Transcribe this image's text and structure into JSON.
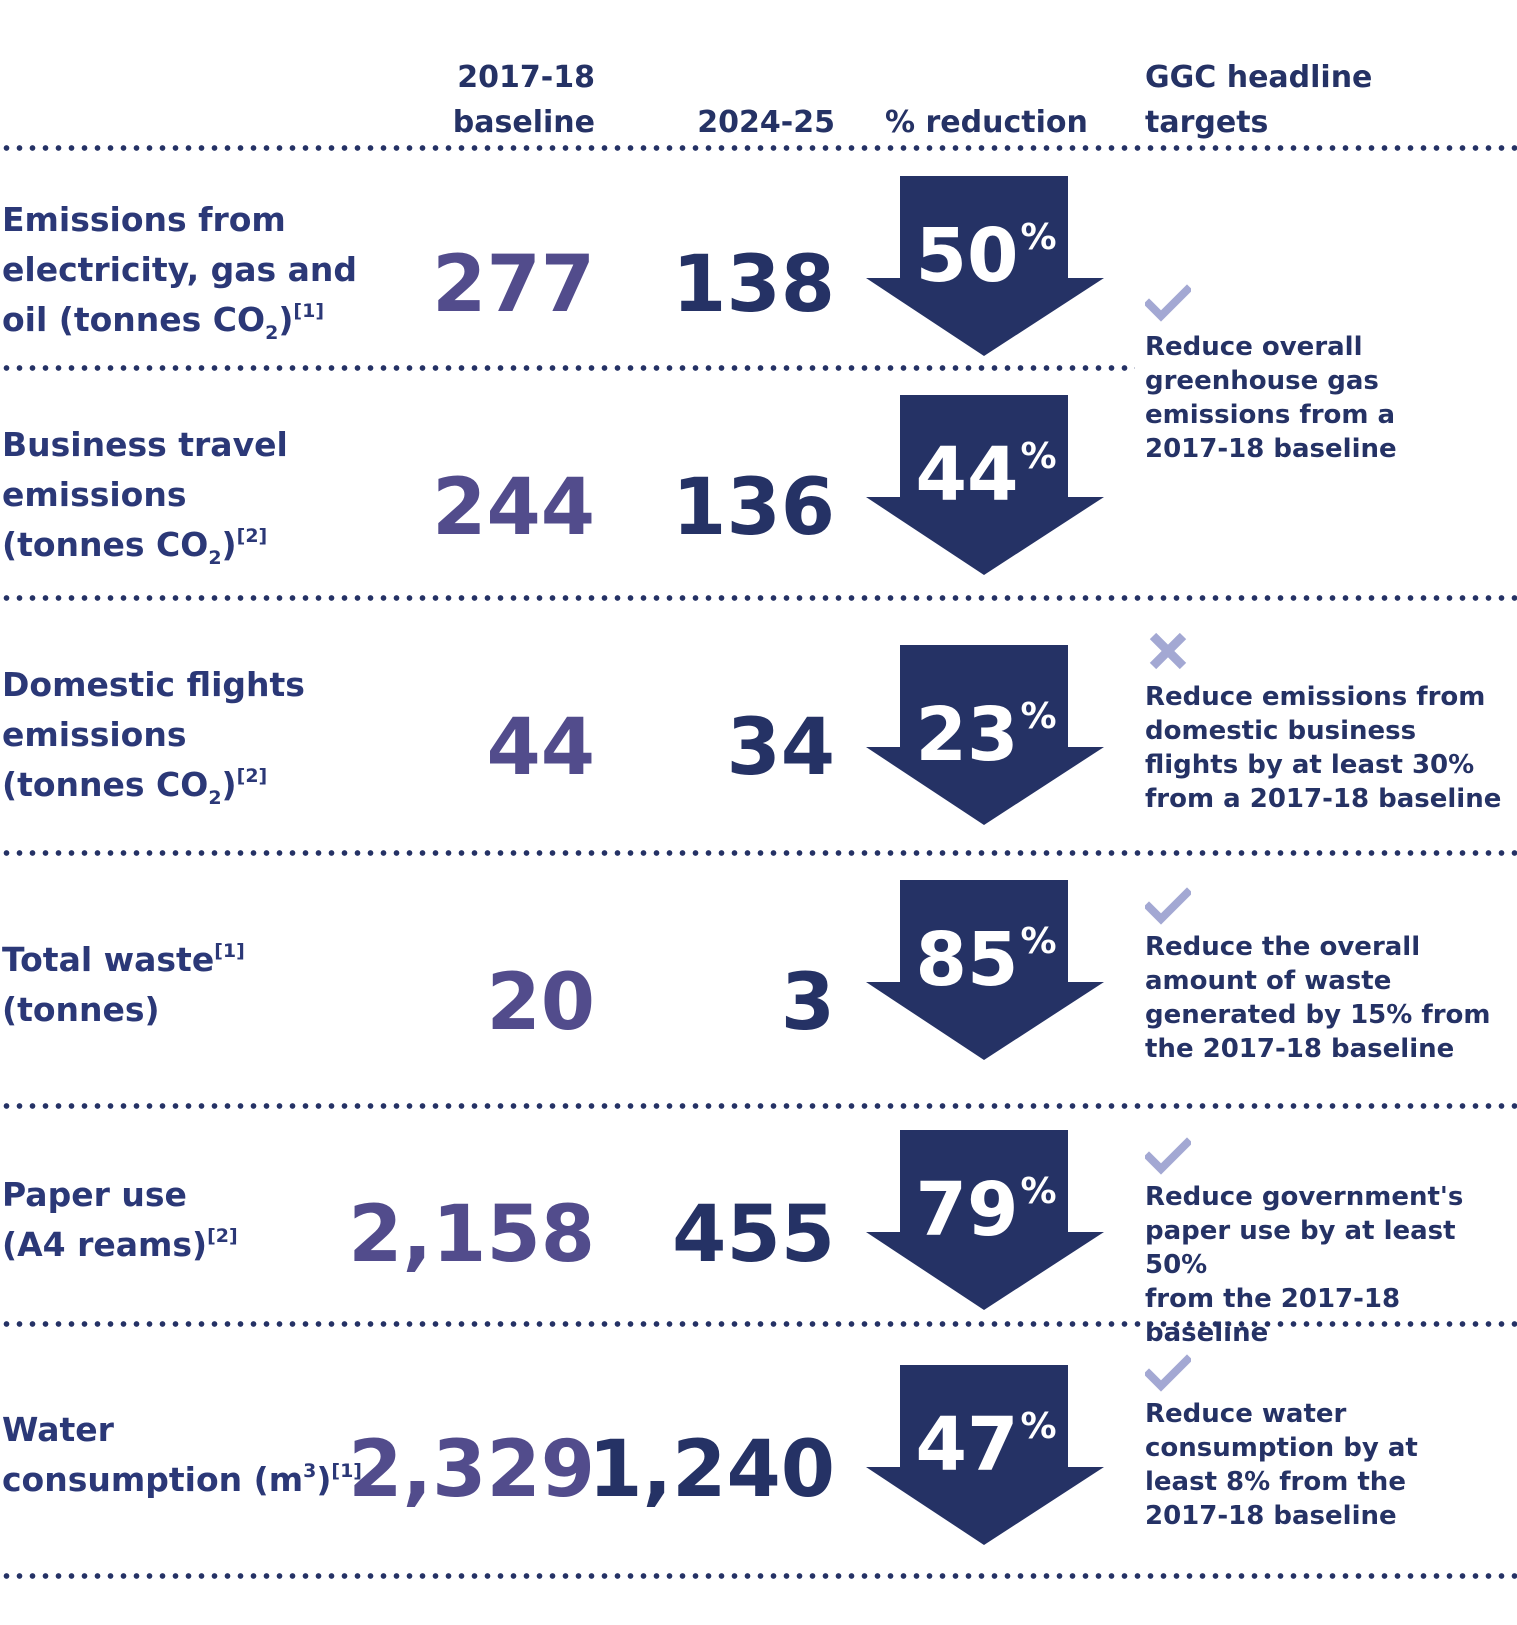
{
  "headers": {
    "baseline": [
      "2017-18",
      "baseline"
    ],
    "current": "2024-25",
    "reduction": "% reduction",
    "targets": [
      "GGC headline",
      "targets"
    ]
  },
  "rows": [
    {
      "label_lines": [
        "Emissions from",
        "electricity, gas and",
        "oil (tonnes CO"
      ],
      "label_sub": "2",
      "label_tail": ")",
      "footnote": "[1]",
      "baseline": "277",
      "current": "138",
      "reduction": "50",
      "pct_sign": "%"
    },
    {
      "label_lines": [
        "Business travel",
        "emissions",
        "(tonnes CO"
      ],
      "label_sub": "2",
      "label_tail": ")",
      "footnote": "[2]",
      "baseline": "244",
      "current": "136",
      "reduction": "44",
      "pct_sign": "%"
    },
    {
      "label_lines": [
        "Domestic flights",
        "emissions",
        "(tonnes CO"
      ],
      "label_sub": "2",
      "label_tail": ")",
      "footnote": "[2]",
      "baseline": "44",
      "current": "34",
      "reduction": "23",
      "pct_sign": "%"
    },
    {
      "label_lines": [
        "Total waste",
        "(tonnes)"
      ],
      "footnote": "[1]",
      "baseline": "20",
      "current": "3",
      "reduction": "85",
      "pct_sign": "%"
    },
    {
      "label_lines": [
        "Paper use",
        "(A4 reams)"
      ],
      "footnote": "[2]",
      "baseline": "2,158",
      "current": "455",
      "reduction": "79",
      "pct_sign": "%"
    },
    {
      "label_lines": [
        "Water",
        "consumption (m"
      ],
      "label_sup": "3",
      "label_tail": ")",
      "footnote": "[1]",
      "baseline": "2,329",
      "current": "1,240",
      "reduction": "47",
      "pct_sign": "%"
    }
  ],
  "targets": [
    {
      "status": "met",
      "icon": "check-icon",
      "lines": [
        "Reduce overall",
        "greenhouse gas",
        "emissions from a",
        "2017-18 baseline"
      ]
    },
    {
      "status": "not-met",
      "icon": "cross-icon",
      "lines": [
        "Reduce emissions from",
        "domestic business",
        "flights by at least 30%",
        "from a 2017-18 baseline"
      ]
    },
    {
      "status": "met",
      "icon": "check-icon",
      "lines": [
        "Reduce the overall",
        "amount of waste",
        "generated by 15% from",
        "the 2017-18 baseline"
      ]
    },
    {
      "status": "met",
      "icon": "check-icon",
      "lines": [
        "Reduce government's",
        "paper use by at least 50%",
        "from the 2017-18 baseline"
      ]
    },
    {
      "status": "met",
      "icon": "check-icon",
      "lines": [
        "Reduce water",
        "consumption by at",
        "least 8% from the",
        "2017-18 baseline"
      ]
    }
  ],
  "colors": {
    "navy": "#253265",
    "baseline_purple": "#524c8c",
    "icon_lavender": "#a3a8d3",
    "background": "#ffffff"
  }
}
